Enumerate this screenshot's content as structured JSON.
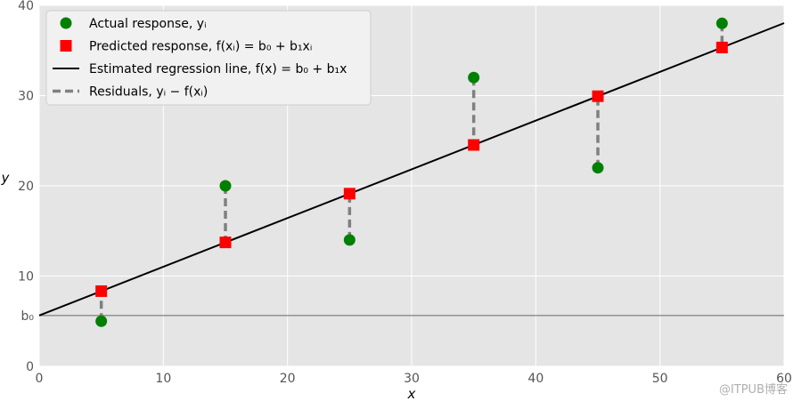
{
  "chart_data": {
    "type": "scatter",
    "xlabel": "x",
    "ylabel": "y",
    "xlim": [
      0,
      60
    ],
    "ylim": [
      0,
      40
    ],
    "xticks": [
      "0",
      "10",
      "20",
      "30",
      "40",
      "50",
      "60"
    ],
    "yticks": [
      "0",
      "10",
      "20",
      "30",
      "40"
    ],
    "b0_tick_label": "b₀",
    "grid": true,
    "legend_position": "top-left",
    "intercept": 5.63,
    "slope": 0.54,
    "x": [
      5,
      15,
      25,
      35,
      45,
      55
    ],
    "actual_y": [
      5,
      20,
      14,
      32,
      22,
      38
    ],
    "predicted_y": [
      8.33,
      13.73,
      19.13,
      24.53,
      29.93,
      35.33
    ],
    "legend": [
      {
        "kind": "actual",
        "label": "Actual response, yᵢ"
      },
      {
        "kind": "predicted",
        "label": "Predicted response, f(xᵢ) = b₀ + b₁xᵢ"
      },
      {
        "kind": "line",
        "label": "Estimated regression line, f(x) = b₀ + b₁x"
      },
      {
        "kind": "residual",
        "label": "Residuals, yᵢ − f(xᵢ)"
      }
    ],
    "colors": {
      "actual": "#008000",
      "predicted": "#ff0000",
      "line": "#000000",
      "residual": "#808080",
      "plot_background": "#e5e5e5",
      "grid": "#ffffff"
    }
  },
  "watermark": "@ITPUB博客"
}
